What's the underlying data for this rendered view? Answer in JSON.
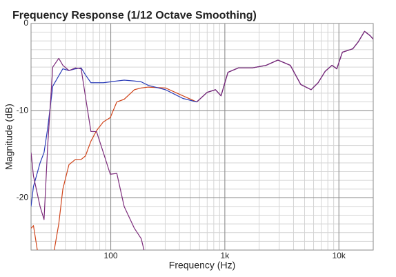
{
  "chart_data": {
    "type": "line",
    "title": "Frequency Response (1/12 Octave Smoothing)",
    "xlabel": "Frequency (Hz)",
    "ylabel": "Magnitude (dB)",
    "xscale": "log",
    "grid": true,
    "minor_grid": true,
    "xlim": [
      20,
      20000
    ],
    "ylim": [
      -26,
      0
    ],
    "xticks": [
      {
        "value": 100,
        "label": "100"
      },
      {
        "value": 1000,
        "label": "1k"
      },
      {
        "value": 10000,
        "label": "10k"
      }
    ],
    "yticks": [
      0,
      -10,
      -20
    ],
    "x": [
      20,
      21,
      24,
      26,
      28,
      31,
      35,
      38,
      43,
      49,
      55,
      60,
      67,
      75,
      86,
      99,
      113,
      131,
      161,
      185,
      213,
      302,
      429,
      567,
      700,
      828,
      926,
      1065,
      1314,
      1739,
      2300,
      2920,
      3750,
      4630,
      5710,
      6570,
      7570,
      8690,
      9590,
      10720,
      13240,
      14800,
      16790,
      18790,
      20000
    ],
    "series": [
      {
        "color": "#d0451b",
        "values": [
          -23.5,
          -23.2,
          -28,
          -30,
          -30,
          -27,
          -23,
          -19,
          -16.2,
          -15.6,
          -15.6,
          -15.2,
          -13.5,
          -12.3,
          -11.3,
          -10.8,
          -9,
          -8.7,
          -7.6,
          -7.4,
          -7.3,
          -7.4,
          -8.3,
          -9.0,
          -7.9,
          -7.6,
          -8.3,
          -5.6,
          -5.1,
          -5.1,
          -4.8,
          -4.2,
          -4.8,
          -7.0,
          -7.6,
          -6.8,
          -5.5,
          -4.8,
          -5.2,
          -3.3,
          -2.9,
          -2.1,
          -0.9,
          -1.4,
          -1.8
        ]
      },
      {
        "color": "#2a3cb8",
        "values": [
          -21,
          -18.7,
          -16,
          -14.8,
          -12,
          -7.2,
          -6,
          -5.2,
          -5.4,
          -5.2,
          -5.1,
          -5.9,
          -6.8,
          -6.8,
          -6.8,
          -6.7,
          -6.6,
          -6.5,
          -6.6,
          -6.7,
          -7.1,
          -7.6,
          -8.6,
          -9.0,
          -7.9,
          -7.6,
          -8.3,
          -5.6,
          -5.1,
          -5.1,
          -4.8,
          -4.2,
          -4.8,
          -7.0,
          -7.6,
          -6.8,
          -5.5,
          -4.8,
          -5.2,
          -3.3,
          -2.9,
          -2.1,
          -0.9,
          -1.4,
          -1.8
        ]
      },
      {
        "color": "#7b2a7a",
        "values": [
          -14.8,
          -17.5,
          -21,
          -22.5,
          -14,
          -5,
          -4,
          -4.8,
          -5.4,
          -5.1,
          -5.2,
          -8.4,
          -12.4,
          -12.4,
          -14.8,
          -17.3,
          -17.2,
          -21,
          -23.5,
          -24.7,
          -28,
          null,
          null,
          -9.0,
          -7.9,
          -7.6,
          -8.3,
          -5.6,
          -5.1,
          -5.1,
          -4.8,
          -4.2,
          -4.8,
          -7.0,
          -7.6,
          -6.8,
          -5.5,
          -4.8,
          -5.2,
          -3.3,
          -2.9,
          -2.1,
          -0.9,
          -1.4,
          -1.8
        ]
      }
    ]
  }
}
